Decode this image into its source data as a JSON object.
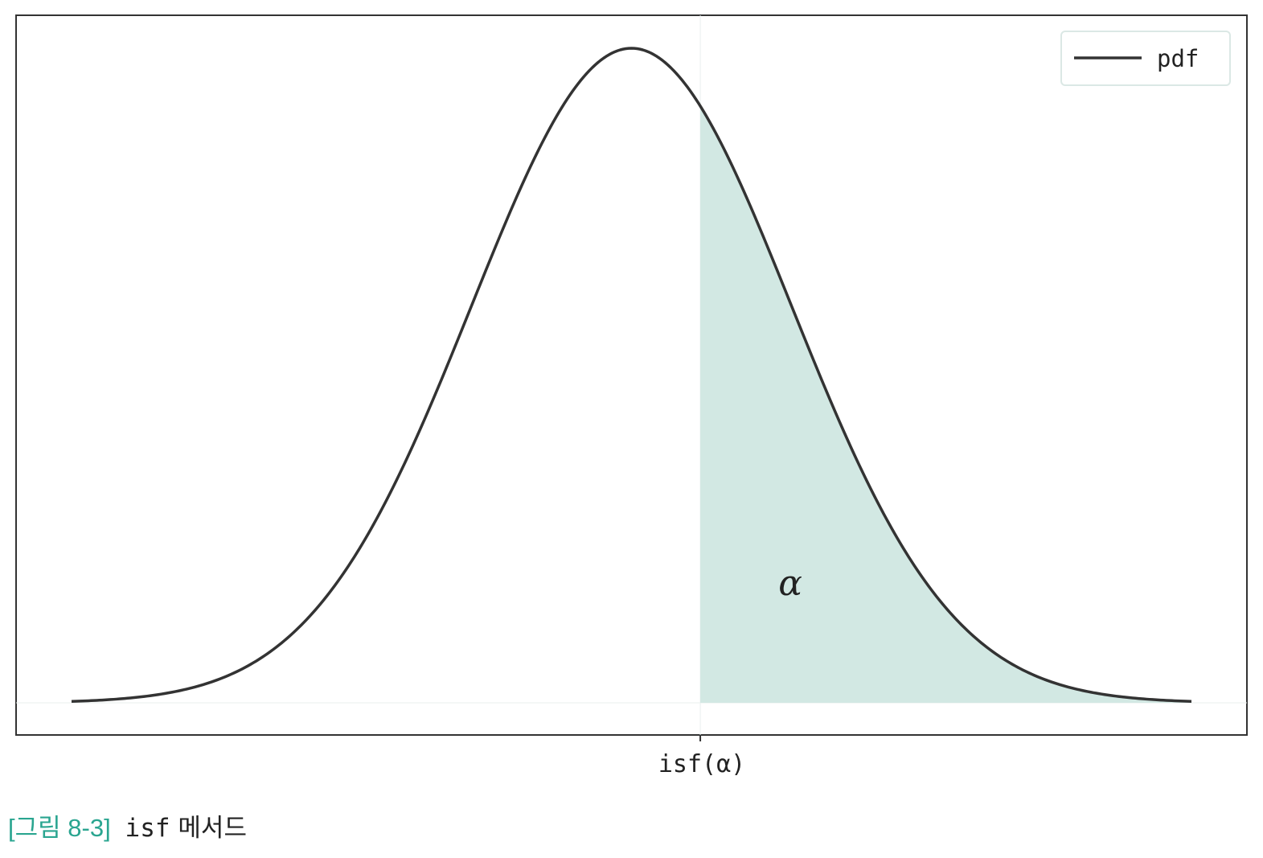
{
  "chart_data": {
    "type": "area",
    "distribution": "normal",
    "x": {
      "min": -3.5,
      "max": 3.5
    },
    "ylim": [
      0,
      1
    ],
    "series": [
      {
        "name": "pdf",
        "mean": 0,
        "std": 1
      }
    ],
    "shaded_region": {
      "from": 0.43,
      "to": 3.5,
      "label": "α",
      "color": "#d2e8e3"
    },
    "xticks": [
      {
        "value": 0.43,
        "label": "isf(α)"
      }
    ],
    "yticks": [],
    "legend": {
      "entries": [
        "pdf"
      ],
      "position": "top-right"
    },
    "line_color": "#333333",
    "grid": false,
    "title": "",
    "xlabel": "",
    "ylabel": ""
  },
  "caption": {
    "prefix": "[그림 8-3]",
    "code": "isf",
    "text": "메서드"
  }
}
